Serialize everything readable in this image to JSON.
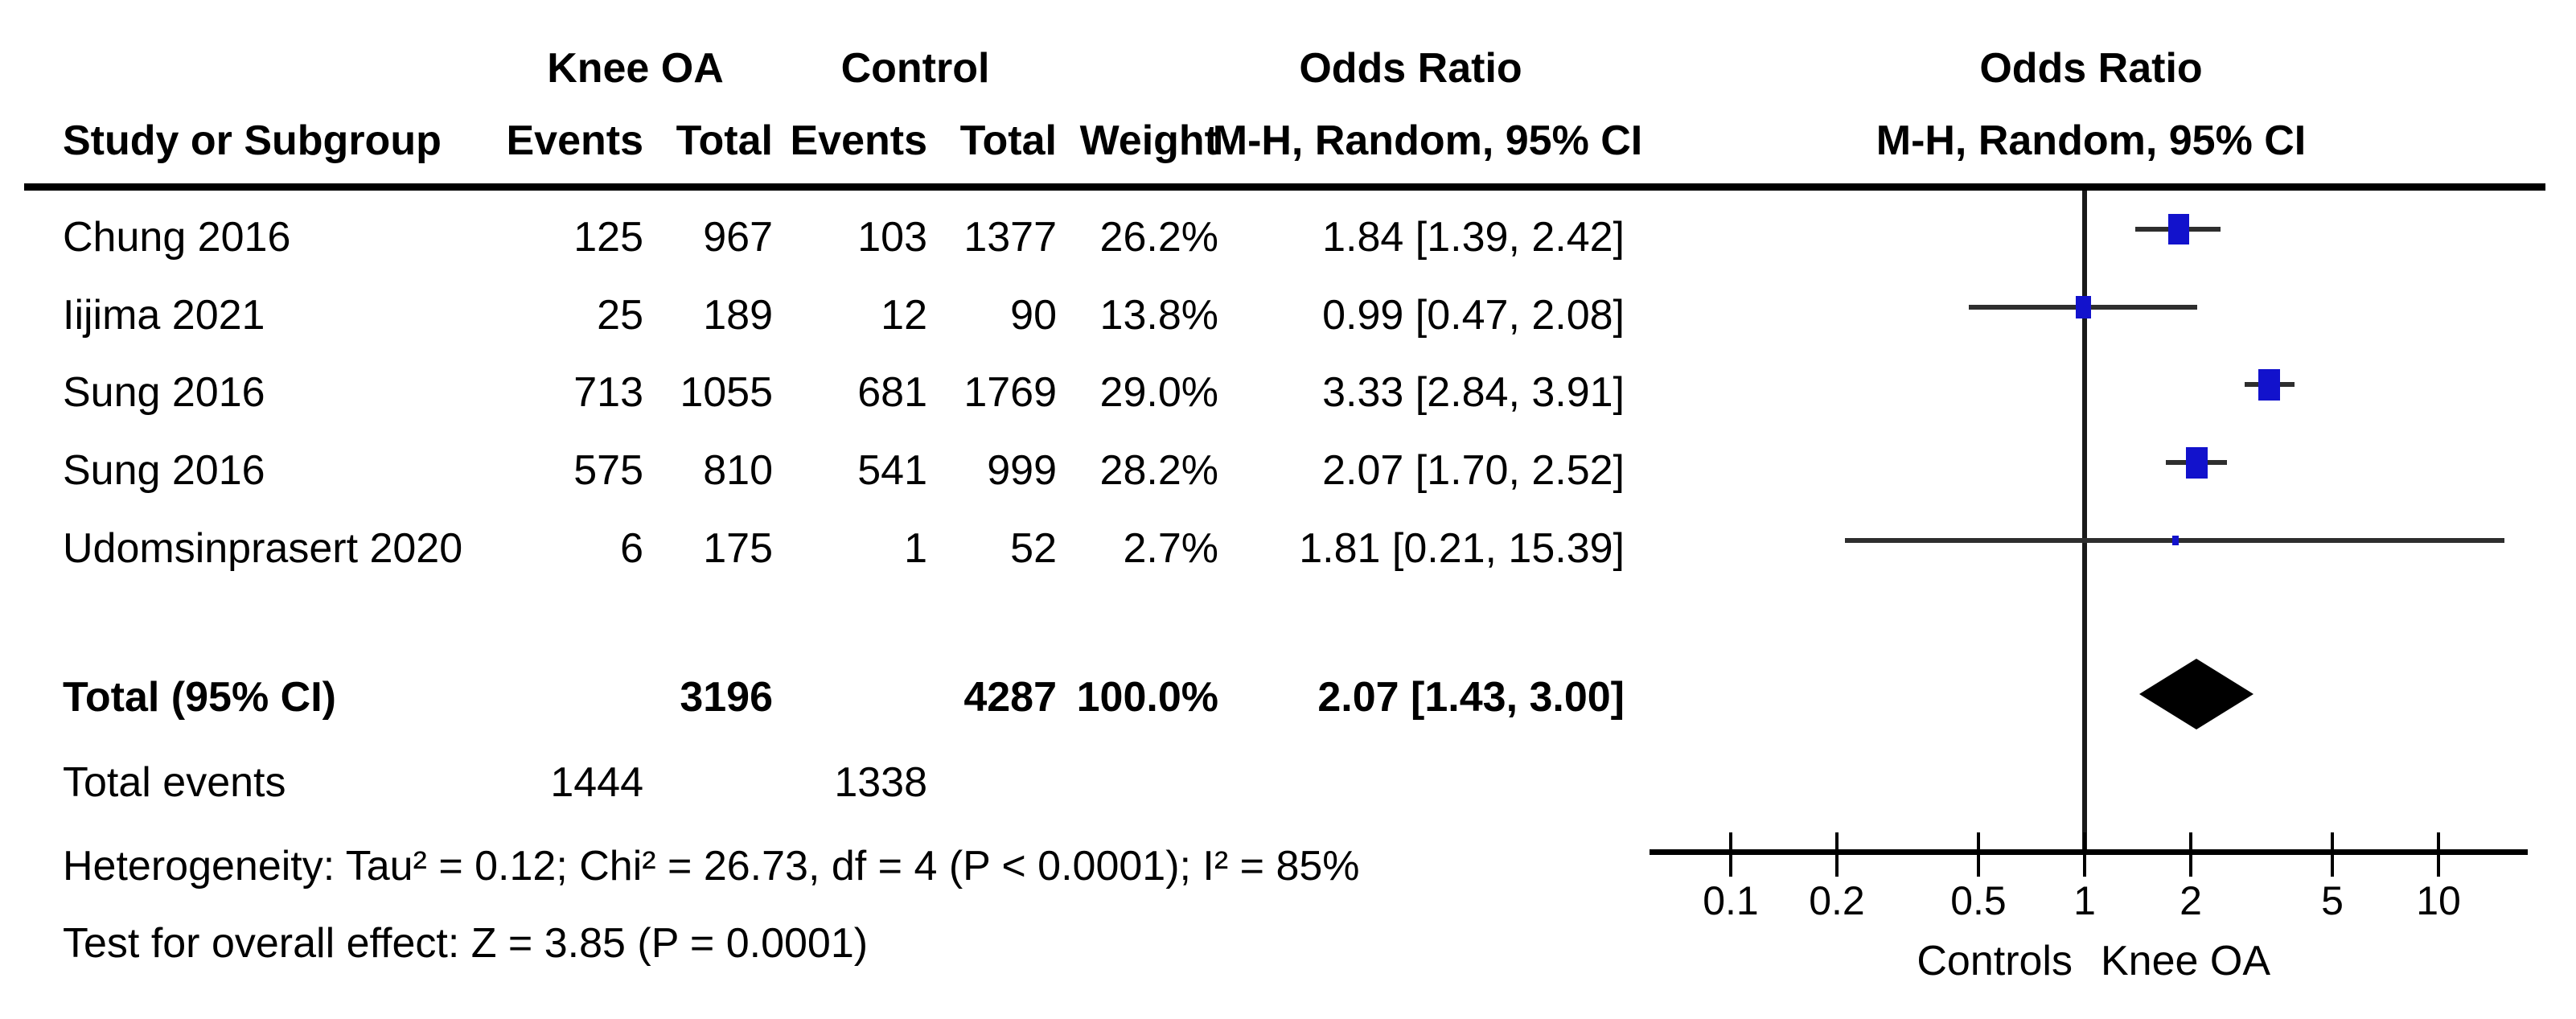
{
  "header": {
    "group_knee": "Knee OA",
    "group_control": "Control",
    "odds_ratio_label_table": "Odds Ratio",
    "odds_ratio_label_plot": "Odds Ratio",
    "method_label_table": "M-H, Random, 95% CI",
    "method_label_plot": "M-H, Random, 95% CI",
    "col_study": "Study or Subgroup",
    "col_knee_events": "Events",
    "col_knee_total": "Total",
    "col_control_events": "Events",
    "col_control_total": "Total",
    "col_weight": "Weight"
  },
  "chart_data": {
    "type": "scatter",
    "subtype": "forest-plot",
    "effect_measure": "Odds Ratio, M-H, Random, 95% CI",
    "x_scale": "log",
    "x_ticks": [
      0.1,
      0.2,
      0.5,
      1,
      2,
      5,
      10
    ],
    "x_tick_labels": [
      "0.1",
      "0.2",
      "0.5",
      "1",
      "2",
      "5",
      "10"
    ],
    "x_axis_range": [
      0.058,
      17.5
    ],
    "null_line_value": 1,
    "x_axis_left_label": "Controls",
    "x_axis_right_label": "Knee OA",
    "studies": [
      {
        "name": "Chung 2016",
        "knee_events": "125",
        "knee_total": "967",
        "control_events": "103",
        "control_total": "1377",
        "weight": "26.2%",
        "weight_pct": 26.2,
        "or": 1.84,
        "ci_low": 1.39,
        "ci_high": 2.42,
        "or_text": "1.84 [1.39, 2.42]"
      },
      {
        "name": "Iijima 2021",
        "knee_events": "25",
        "knee_total": "189",
        "control_events": "12",
        "control_total": "90",
        "weight": "13.8%",
        "weight_pct": 13.8,
        "or": 0.99,
        "ci_low": 0.47,
        "ci_high": 2.08,
        "or_text": "0.99 [0.47, 2.08]"
      },
      {
        "name": "Sung 2016",
        "knee_events": "713",
        "knee_total": "1055",
        "control_events": "681",
        "control_total": "1769",
        "weight": "29.0%",
        "weight_pct": 29.0,
        "or": 3.33,
        "ci_low": 2.84,
        "ci_high": 3.91,
        "or_text": "3.33 [2.84, 3.91]"
      },
      {
        "name": "Sung 2016",
        "knee_events": "575",
        "knee_total": "810",
        "control_events": "541",
        "control_total": "999",
        "weight": "28.2%",
        "weight_pct": 28.2,
        "or": 2.07,
        "ci_low": 1.7,
        "ci_high": 2.52,
        "or_text": "2.07 [1.70, 2.52]"
      },
      {
        "name": "Udomsinprasert 2020",
        "knee_events": "6",
        "knee_total": "175",
        "control_events": "1",
        "control_total": "52",
        "weight": "2.7%",
        "weight_pct": 2.7,
        "or": 1.81,
        "ci_low": 0.21,
        "ci_high": 15.39,
        "or_text": "1.81 [0.21, 15.39]"
      }
    ],
    "total": {
      "label": "Total (95% CI)",
      "knee_total": "3196",
      "control_total": "4287",
      "weight": "100.0%",
      "or": 2.07,
      "ci_low": 1.43,
      "ci_high": 3.0,
      "or_text": "2.07 [1.43, 3.00]"
    },
    "total_events": {
      "label": "Total events",
      "knee": "1444",
      "control": "1338"
    }
  },
  "footer": {
    "heterogeneity": "Heterogeneity: Tau² = 0.12; Chi² = 26.73, df = 4 (P < 0.0001); I² = 85%",
    "overall_effect": "Test for overall effect: Z = 3.85 (P = 0.0001)"
  },
  "colors": {
    "square": "#1212cc",
    "whisker": "#2e2e2e",
    "diamond": "#000000",
    "line": "#000000",
    "text": "#000000"
  }
}
